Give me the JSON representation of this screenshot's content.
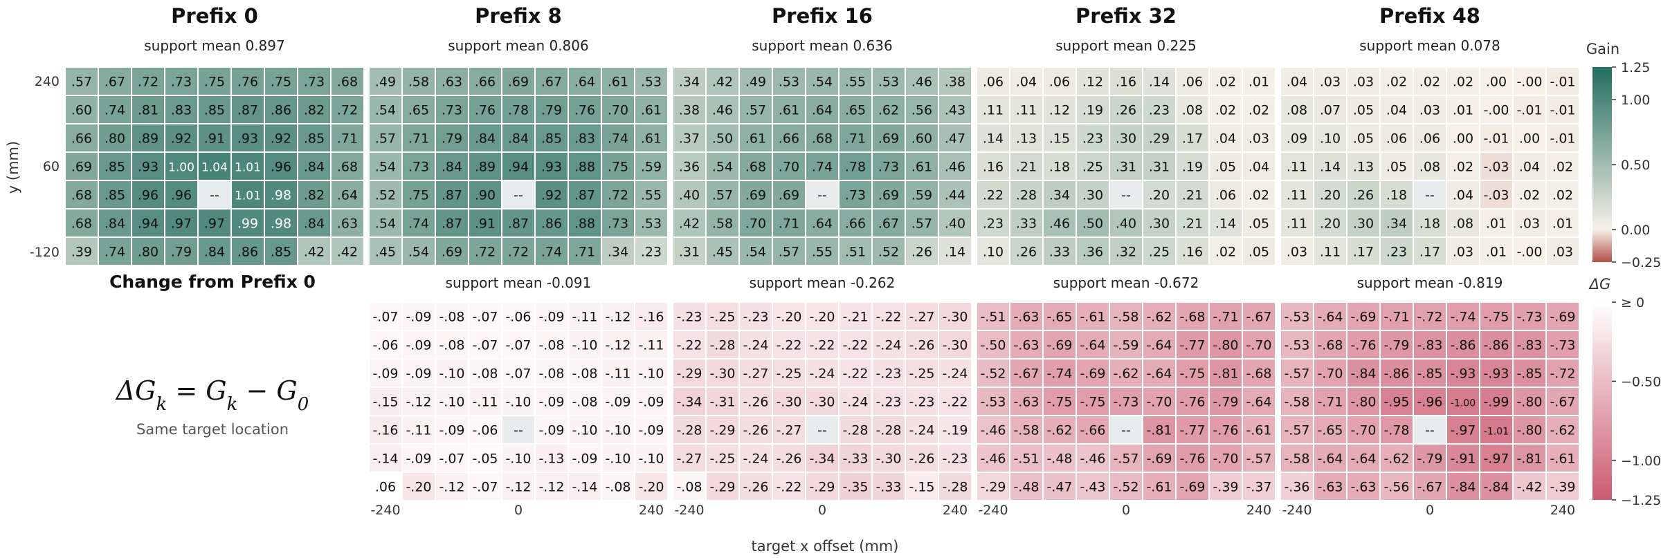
{
  "chart_data": {
    "type": "heatmap",
    "xlabel": "target x offset (mm)",
    "ylabel": "y (mm)",
    "x_ticks": [
      "-240",
      "0",
      "240"
    ],
    "y_ticks": [
      "240",
      "60",
      "-120"
    ],
    "top_row": [
      {
        "title": "Prefix 0",
        "subtitle": "support mean  0.897",
        "labels": [
          [
            ".57",
            ".67",
            ".72",
            ".73",
            ".75",
            ".76",
            ".75",
            ".73",
            ".68"
          ],
          [
            ".60",
            ".74",
            ".81",
            ".83",
            ".85",
            ".87",
            ".86",
            ".82",
            ".72"
          ],
          [
            ".66",
            ".80",
            ".89",
            ".92",
            ".91",
            ".93",
            ".92",
            ".85",
            ".71"
          ],
          [
            ".69",
            ".85",
            ".93",
            "1.00",
            "1.04",
            "1.01",
            ".96",
            ".84",
            ".68"
          ],
          [
            ".68",
            ".85",
            ".96",
            ".96",
            "--",
            "1.01",
            ".98",
            ".82",
            ".64"
          ],
          [
            ".68",
            ".84",
            ".94",
            ".97",
            ".97",
            ".99",
            ".98",
            ".84",
            ".63"
          ],
          [
            ".39",
            ".74",
            ".80",
            ".79",
            ".84",
            ".86",
            ".85",
            ".42",
            ".42"
          ]
        ]
      },
      {
        "title": "Prefix 8",
        "subtitle": "support mean  0.806",
        "labels": [
          [
            ".49",
            ".58",
            ".63",
            ".66",
            ".69",
            ".67",
            ".64",
            ".61",
            ".53"
          ],
          [
            ".54",
            ".65",
            ".73",
            ".76",
            ".78",
            ".79",
            ".76",
            ".70",
            ".61"
          ],
          [
            ".57",
            ".71",
            ".79",
            ".84",
            ".84",
            ".85",
            ".83",
            ".74",
            ".61"
          ],
          [
            ".54",
            ".73",
            ".84",
            ".89",
            ".94",
            ".93",
            ".88",
            ".75",
            ".59"
          ],
          [
            ".52",
            ".75",
            ".87",
            ".90",
            "--",
            ".92",
            ".87",
            ".72",
            ".55"
          ],
          [
            ".54",
            ".74",
            ".87",
            ".91",
            ".87",
            ".86",
            ".88",
            ".73",
            ".53"
          ],
          [
            ".45",
            ".54",
            ".69",
            ".72",
            ".72",
            ".74",
            ".71",
            ".34",
            ".23"
          ]
        ]
      },
      {
        "title": "Prefix 16",
        "subtitle": "support mean  0.636",
        "labels": [
          [
            ".34",
            ".42",
            ".49",
            ".53",
            ".54",
            ".55",
            ".53",
            ".46",
            ".38"
          ],
          [
            ".38",
            ".46",
            ".57",
            ".61",
            ".64",
            ".65",
            ".62",
            ".56",
            ".43"
          ],
          [
            ".37",
            ".50",
            ".61",
            ".66",
            ".68",
            ".71",
            ".69",
            ".60",
            ".47"
          ],
          [
            ".36",
            ".54",
            ".68",
            ".70",
            ".74",
            ".78",
            ".73",
            ".61",
            ".46"
          ],
          [
            ".40",
            ".57",
            ".69",
            ".69",
            "--",
            ".73",
            ".69",
            ".59",
            ".44"
          ],
          [
            ".42",
            ".58",
            ".70",
            ".71",
            ".64",
            ".66",
            ".67",
            ".57",
            ".40"
          ],
          [
            ".31",
            ".45",
            ".54",
            ".57",
            ".55",
            ".51",
            ".52",
            ".26",
            ".14"
          ]
        ]
      },
      {
        "title": "Prefix 32",
        "subtitle": "support mean  0.225",
        "labels": [
          [
            ".06",
            ".04",
            ".06",
            ".12",
            ".16",
            ".14",
            ".06",
            ".02",
            ".01"
          ],
          [
            ".11",
            ".11",
            ".12",
            ".19",
            ".26",
            ".23",
            ".08",
            ".02",
            ".02"
          ],
          [
            ".14",
            ".13",
            ".15",
            ".23",
            ".30",
            ".29",
            ".17",
            ".04",
            ".03"
          ],
          [
            ".16",
            ".21",
            ".18",
            ".25",
            ".31",
            ".31",
            ".19",
            ".05",
            ".04"
          ],
          [
            ".22",
            ".28",
            ".34",
            ".30",
            "--",
            ".20",
            ".21",
            ".06",
            ".02"
          ],
          [
            ".23",
            ".33",
            ".46",
            ".50",
            ".40",
            ".30",
            ".21",
            ".14",
            ".05"
          ],
          [
            ".10",
            ".26",
            ".33",
            ".36",
            ".32",
            ".25",
            ".16",
            ".02",
            ".05"
          ]
        ]
      },
      {
        "title": "Prefix 48",
        "subtitle": "support mean  0.078",
        "labels": [
          [
            ".04",
            ".03",
            ".03",
            ".02",
            ".02",
            ".02",
            ".00",
            "-.00",
            "-.01"
          ],
          [
            ".08",
            ".07",
            ".05",
            ".04",
            ".03",
            ".01",
            "-.00",
            "-.01",
            "-.01"
          ],
          [
            ".09",
            ".10",
            ".05",
            ".06",
            ".06",
            ".00",
            "-.01",
            ".00",
            "-.01"
          ],
          [
            ".11",
            ".14",
            ".13",
            ".05",
            ".08",
            ".02",
            "-.03",
            ".04",
            ".02"
          ],
          [
            ".11",
            ".20",
            ".26",
            ".18",
            "--",
            ".04",
            "-.03",
            ".02",
            ".02"
          ],
          [
            ".11",
            ".20",
            ".30",
            ".34",
            ".18",
            ".08",
            ".01",
            ".03",
            ".01"
          ],
          [
            ".03",
            ".11",
            ".17",
            ".23",
            ".17",
            ".03",
            ".01",
            "-.00",
            ".03"
          ]
        ]
      }
    ],
    "bottom_title": "Change from Prefix 0",
    "formula": "ΔGk = Gk − G0",
    "formula_parts": {
      "delta_g": "ΔG",
      "k": "k",
      "eq": " = G",
      "minus": " − G",
      "zero": "0"
    },
    "formula_note": "Same target location",
    "bottom_row": [
      {
        "subtitle": "support mean  -0.091",
        "labels": [
          [
            "-.07",
            "-.09",
            "-.08",
            "-.07",
            "-.06",
            "-.09",
            "-.11",
            "-.12",
            "-.16"
          ],
          [
            "-.06",
            "-.09",
            "-.08",
            "-.07",
            "-.07",
            "-.08",
            "-.10",
            "-.12",
            "-.11"
          ],
          [
            "-.09",
            "-.09",
            "-.10",
            "-.08",
            "-.07",
            "-.08",
            "-.08",
            "-.11",
            "-.10"
          ],
          [
            "-.15",
            "-.12",
            "-.10",
            "-.11",
            "-.10",
            "-.09",
            "-.08",
            "-.09",
            "-.09"
          ],
          [
            "-.16",
            "-.11",
            "-.09",
            "-.06",
            "--",
            "-.09",
            "-.10",
            "-.10",
            "-.09"
          ],
          [
            "-.14",
            "-.09",
            "-.07",
            "-.05",
            "-.10",
            "-.13",
            "-.09",
            "-.10",
            "-.10"
          ],
          [
            ".06",
            "-.20",
            "-.12",
            "-.07",
            "-.12",
            "-.12",
            "-.14",
            "-.08",
            "-.20"
          ]
        ]
      },
      {
        "subtitle": "support mean  -0.262",
        "labels": [
          [
            "-.23",
            "-.25",
            "-.23",
            "-.20",
            "-.20",
            "-.21",
            "-.22",
            "-.27",
            "-.30"
          ],
          [
            "-.22",
            "-.28",
            "-.24",
            "-.22",
            "-.22",
            "-.22",
            "-.24",
            "-.26",
            "-.30"
          ],
          [
            "-.29",
            "-.30",
            "-.27",
            "-.25",
            "-.24",
            "-.22",
            "-.23",
            "-.25",
            "-.24"
          ],
          [
            "-.34",
            "-.31",
            "-.26",
            "-.30",
            "-.30",
            "-.24",
            "-.23",
            "-.23",
            "-.22"
          ],
          [
            "-.28",
            "-.29",
            "-.26",
            "-.27",
            "--",
            "-.28",
            "-.28",
            "-.24",
            "-.19"
          ],
          [
            "-.27",
            "-.25",
            "-.24",
            "-.26",
            "-.34",
            "-.33",
            "-.30",
            "-.26",
            "-.23"
          ],
          [
            "-.08",
            "-.29",
            "-.26",
            "-.22",
            "-.29",
            "-.35",
            "-.33",
            "-.15",
            "-.28"
          ]
        ]
      },
      {
        "subtitle": "support mean  -0.672",
        "labels": [
          [
            "-.51",
            "-.63",
            "-.65",
            "-.61",
            "-.58",
            "-.62",
            "-.68",
            "-.71",
            "-.67"
          ],
          [
            "-.50",
            "-.63",
            "-.69",
            "-.64",
            "-.59",
            "-.64",
            "-.77",
            "-.80",
            "-.70"
          ],
          [
            "-.52",
            "-.67",
            "-.74",
            "-.69",
            "-.62",
            "-.64",
            "-.75",
            "-.81",
            "-.68"
          ],
          [
            "-.53",
            "-.63",
            "-.75",
            "-.75",
            "-.73",
            "-.70",
            "-.76",
            "-.79",
            "-.64"
          ],
          [
            "-.46",
            "-.58",
            "-.62",
            "-.66",
            "--",
            "-.81",
            "-.77",
            "-.76",
            "-.61"
          ],
          [
            "-.46",
            "-.51",
            "-.48",
            "-.46",
            "-.57",
            "-.69",
            "-.76",
            "-.70",
            "-.57"
          ],
          [
            "-.29",
            "-.48",
            "-.47",
            "-.43",
            "-.52",
            "-.61",
            "-.69",
            "-.39",
            "-.37"
          ]
        ]
      },
      {
        "subtitle": "support mean  -0.819",
        "labels": [
          [
            "-.53",
            "-.64",
            "-.69",
            "-.71",
            "-.72",
            "-.74",
            "-.75",
            "-.73",
            "-.69"
          ],
          [
            "-.53",
            "-.68",
            "-.76",
            "-.79",
            "-.83",
            "-.86",
            "-.86",
            "-.83",
            "-.73"
          ],
          [
            "-.57",
            "-.70",
            "-.84",
            "-.86",
            "-.85",
            "-.93",
            "-.93",
            "-.85",
            "-.72"
          ],
          [
            "-.58",
            "-.71",
            "-.80",
            "-.95",
            "-.96",
            "-1.00",
            "-.99",
            "-.80",
            "-.67"
          ],
          [
            "-.57",
            "-.65",
            "-.70",
            "-.78",
            "--",
            "-.97",
            "-1.01",
            "-.80",
            "-.62"
          ],
          [
            "-.58",
            "-.64",
            "-.64",
            "-.62",
            "-.79",
            "-.91",
            "-.97",
            "-.81",
            "-.61"
          ],
          [
            "-.36",
            "-.63",
            "-.63",
            "-.56",
            "-.67",
            "-.84",
            "-.84",
            "-.42",
            "-.39"
          ]
        ]
      }
    ],
    "colorbar_top": {
      "label": "Gain",
      "range": [
        -0.25,
        1.25
      ],
      "ticks": [
        {
          "value": 1.25,
          "label": "1.25"
        },
        {
          "value": 1.0,
          "label": "1.00"
        },
        {
          "value": 0.5,
          "label": "0.50"
        },
        {
          "value": 0.0,
          "label": "0.00"
        },
        {
          "value": -0.25,
          "label": "−0.25"
        }
      ],
      "colors": [
        "#b45049",
        "#f6f0e8",
        "#236e5f"
      ]
    },
    "colorbar_bottom": {
      "label": "ΔG",
      "range": [
        -1.25,
        0.0
      ],
      "ticks": [
        {
          "value": 0.0,
          "label": "≥ 0"
        },
        {
          "value": -0.5,
          "label": "−0.50"
        },
        {
          "value": -1.0,
          "label": "−1.00"
        },
        {
          "value": -1.25,
          "label": "−1.25"
        }
      ],
      "colors": [
        "#cb5b70",
        "#ffffff"
      ]
    },
    "missing_color": "#e8ebec"
  }
}
